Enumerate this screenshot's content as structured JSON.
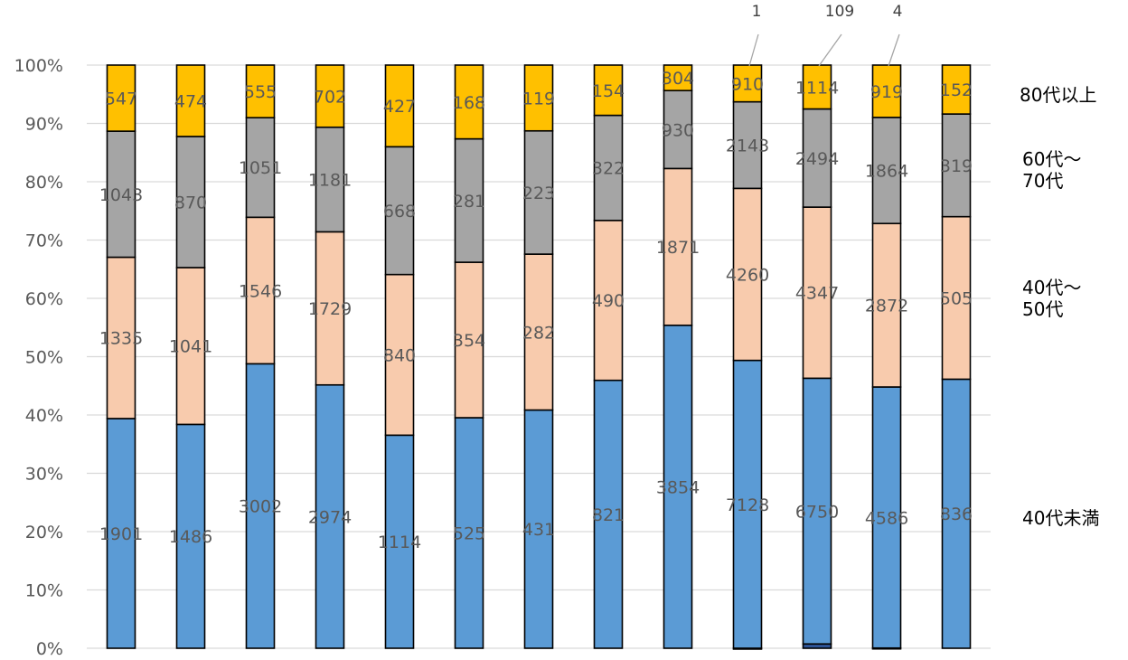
{
  "chart_data": {
    "type": "bar",
    "stacked": "percent",
    "ylim": [
      0,
      100
    ],
    "y_ticks": [
      "0%",
      "10%",
      "20%",
      "30%",
      "40%",
      "50%",
      "60%",
      "70%",
      "80%",
      "90%",
      "100%"
    ],
    "grid": true,
    "series": [
      {
        "values": [
          0,
          0,
          0,
          0,
          0,
          0,
          0,
          0,
          0,
          1,
          109,
          4,
          0
        ],
        "color": "#2F5597",
        "callout_labels": [
          "",
          "",
          "",
          "",
          "",
          "",
          "",
          "",
          "",
          "1",
          "109",
          "4",
          ""
        ]
      },
      {
        "name": "40代未満",
        "values": [
          1901,
          1486,
          3002,
          2974,
          1114,
          525,
          431,
          821,
          3854,
          7128,
          6750,
          4586,
          836
        ],
        "color": "#5B9BD5"
      },
      {
        "name": "40代～50代",
        "values": [
          1335,
          1041,
          1546,
          1729,
          840,
          354,
          282,
          490,
          1871,
          4260,
          4347,
          2872,
          505
        ],
        "color": "#F8CBAD"
      },
      {
        "name": "60代～70代",
        "values": [
          1043,
          870,
          1051,
          1181,
          668,
          281,
          223,
          322,
          930,
          2143,
          2494,
          1864,
          319
        ],
        "color": "#A5A5A5"
      },
      {
        "name": "80代以上",
        "values": [
          547,
          474,
          555,
          702,
          427,
          168,
          119,
          154,
          304,
          910,
          1114,
          919,
          152
        ],
        "color": "#FFC000"
      }
    ],
    "legend": {
      "placement": "right",
      "labels": [
        "80代以上",
        "60代～\n70代",
        "40代～\n50代",
        "40代未満"
      ]
    }
  }
}
